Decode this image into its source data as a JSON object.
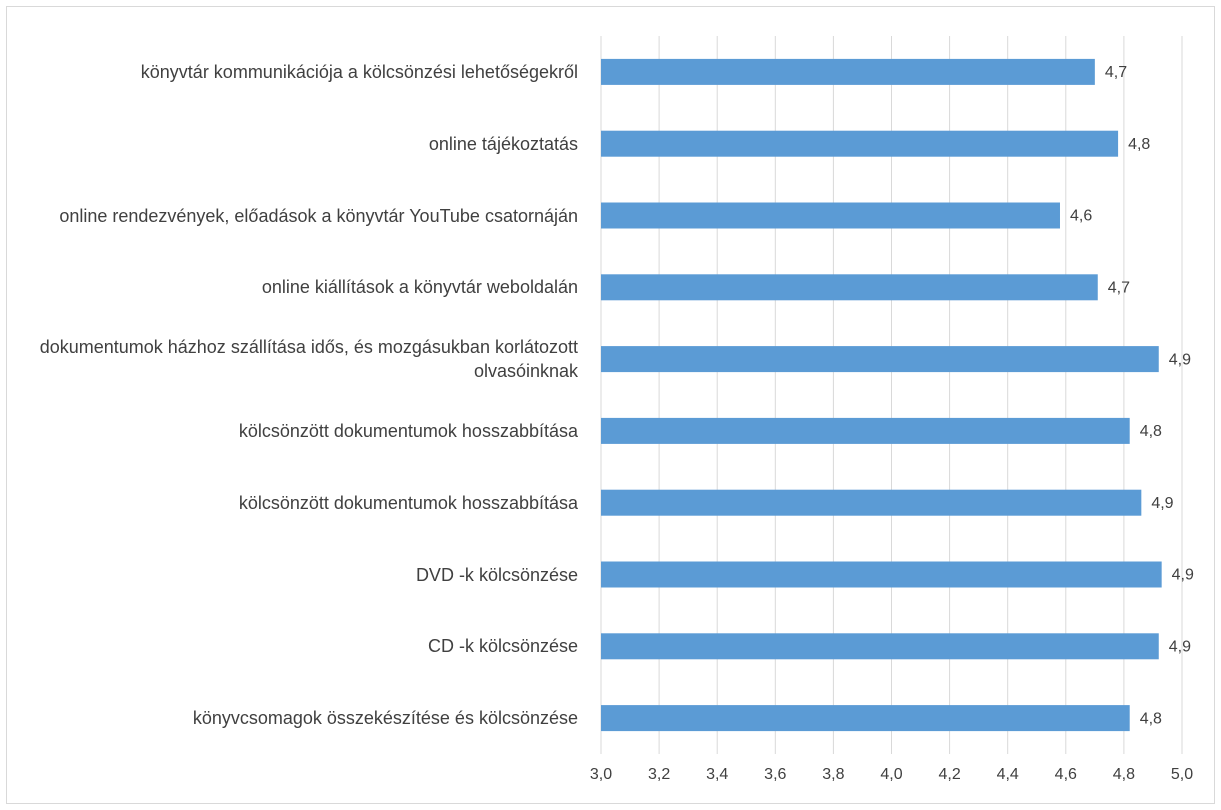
{
  "chart_data": {
    "type": "barh",
    "categories": [
      "könyvtár kommunikációja a kölcsönzési lehetőségekről",
      "online tájékoztatás",
      "online rendezvények, előadások a könyvtár YouTube csatornáján",
      "online kiállítások a könyvtár weboldalán",
      "dokumentumok házhoz szállítása idős, és mozgásukban korlátozott olvasóinknak",
      "kölcsönzött dokumentumok hosszabbítása",
      "kölcsönzött dokumentumok hosszabbítása",
      "DVD -k kölcsönzése",
      "CD -k kölcsönzése",
      "könyvcsomagok összekészítése és kölcsönzése"
    ],
    "values": [
      4.7,
      4.78,
      4.58,
      4.71,
      4.92,
      4.82,
      4.86,
      4.93,
      4.92,
      4.82
    ],
    "value_labels": [
      "4,7",
      "4,8",
      "4,6",
      "4,7",
      "4,9",
      "4,8",
      "4,9",
      "4,9",
      "4,9",
      "4,8"
    ],
    "color": "#5b9bd5",
    "xlim": [
      3,
      5
    ],
    "xticks": [
      {
        "value": 3,
        "label": "3,0"
      },
      {
        "value": 3.2,
        "label": "3,2"
      },
      {
        "value": 3.4,
        "label": "3,4"
      },
      {
        "value": 3.6,
        "label": "3,6"
      },
      {
        "value": 3.8,
        "label": "3,8"
      },
      {
        "value": 4,
        "label": "4,0"
      },
      {
        "value": 4.2,
        "label": "4,2"
      },
      {
        "value": 4.4,
        "label": "4,4"
      },
      {
        "value": 4.6,
        "label": "4,6"
      },
      {
        "value": 4.8,
        "label": "4,8"
      },
      {
        "value": 5,
        "label": "5,0"
      }
    ],
    "grid": true
  }
}
